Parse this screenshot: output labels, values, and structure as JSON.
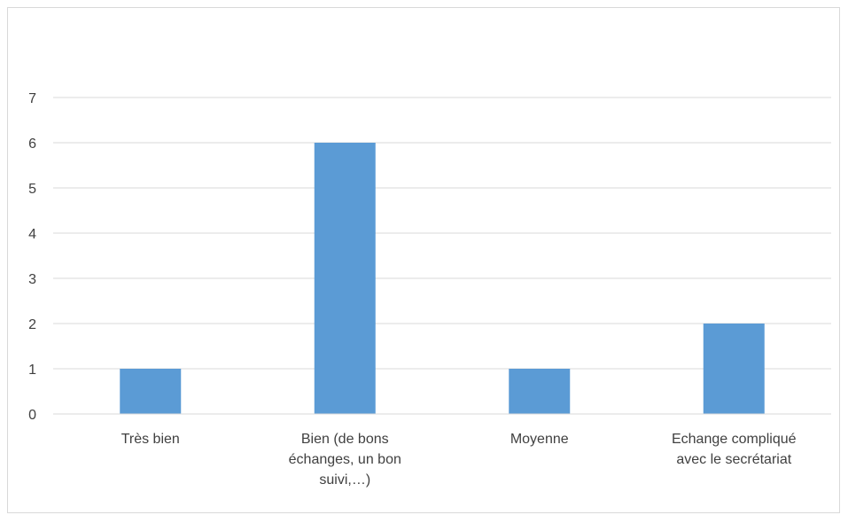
{
  "chart_data": {
    "type": "bar",
    "categories": [
      [
        "Très bien"
      ],
      [
        "Bien (de bons",
        "échanges, un bon",
        "suivi,…)"
      ],
      [
        "Moyenne"
      ],
      [
        "Echange compliqué",
        "avec le secrétariat"
      ]
    ],
    "values": [
      1,
      6,
      1,
      2
    ],
    "ylim": [
      0,
      7
    ],
    "yticks": [
      0,
      1,
      2,
      3,
      4,
      5,
      6,
      7
    ],
    "title": "",
    "xlabel": "",
    "ylabel": "",
    "grid": true,
    "legend": "none",
    "colors": {
      "bar": "#5b9bd5",
      "grid": "#d9d9d9",
      "axis": "#d9d9d9",
      "text": "#404040"
    }
  }
}
